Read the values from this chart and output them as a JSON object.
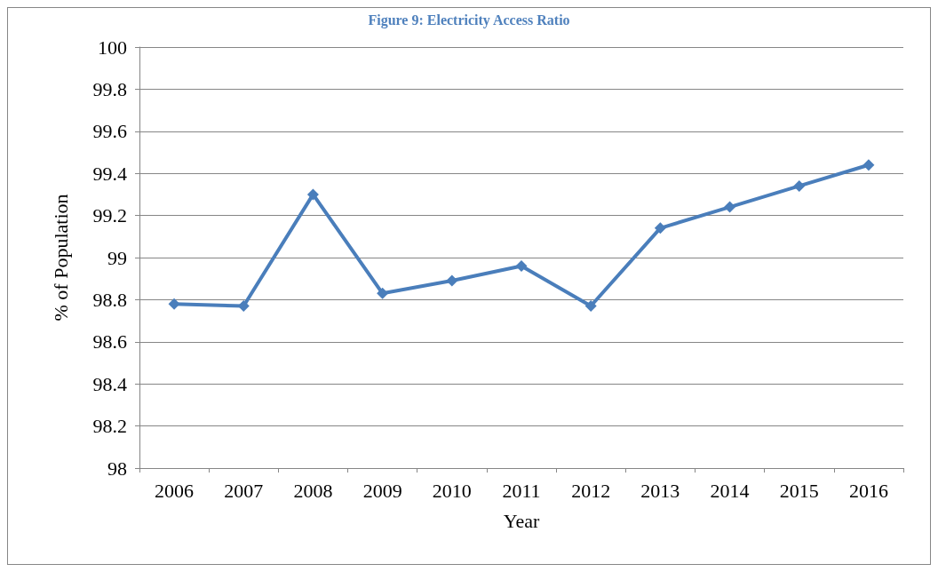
{
  "chart_data": {
    "type": "line",
    "title": "Figure 9: Electricity Access Ratio",
    "xlabel": "Year",
    "ylabel": "% of Population",
    "categories": [
      "2006",
      "2007",
      "2008",
      "2009",
      "2010",
      "2011",
      "2012",
      "2013",
      "2014",
      "2015",
      "2016"
    ],
    "series": [
      {
        "color": "#4a7ebb",
        "values": [
          98.78,
          98.77,
          99.3,
          98.83,
          98.89,
          98.96,
          98.77,
          99.14,
          99.24,
          99.34,
          99.44
        ]
      }
    ],
    "ylim": [
      98,
      100
    ],
    "yticks": [
      98,
      98.2,
      98.4,
      98.6,
      98.8,
      99,
      99.2,
      99.4,
      99.6,
      99.8,
      100
    ],
    "grid": "y",
    "marker": "diamond",
    "line_style": "solid"
  }
}
